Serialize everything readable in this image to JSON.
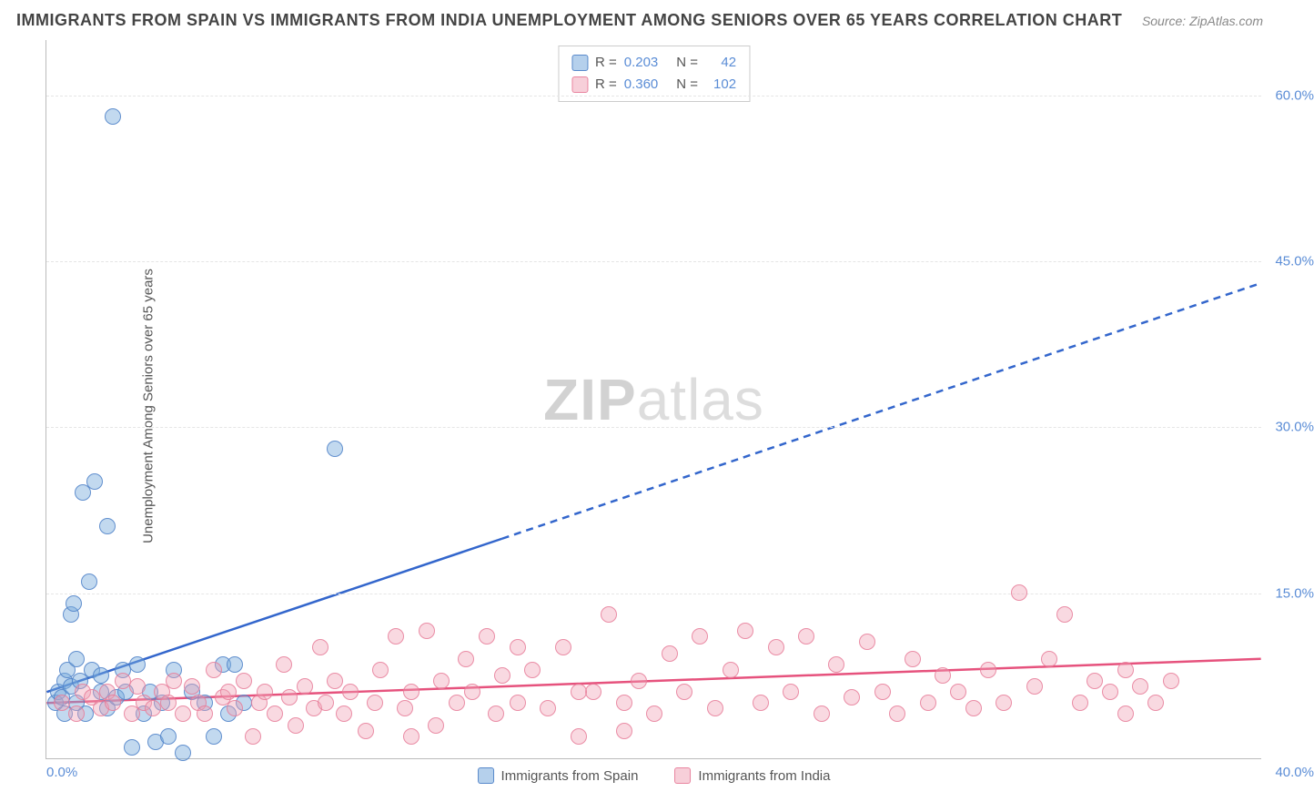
{
  "title": "IMMIGRANTS FROM SPAIN VS IMMIGRANTS FROM INDIA UNEMPLOYMENT AMONG SENIORS OVER 65 YEARS CORRELATION CHART",
  "source_label": "Source: ",
  "source_value": "ZipAtlas.com",
  "ylabel": "Unemployment Among Seniors over 65 years",
  "watermark_a": "ZIP",
  "watermark_b": "atlas",
  "chart": {
    "type": "scatter",
    "xlim": [
      0,
      40
    ],
    "ylim": [
      0,
      65
    ],
    "xticks": [
      {
        "v": 0,
        "label": "0.0%"
      },
      {
        "v": 40,
        "label": "40.0%"
      }
    ],
    "yticks": [
      {
        "v": 15,
        "label": "15.0%"
      },
      {
        "v": 30,
        "label": "30.0%"
      },
      {
        "v": 45,
        "label": "45.0%"
      },
      {
        "v": 60,
        "label": "60.0%"
      }
    ],
    "marker_radius": 9,
    "background_color": "#ffffff",
    "grid_color": "#e5e5e5",
    "series": [
      {
        "name": "Immigrants from Spain",
        "color_fill": "rgba(120,170,220,0.45)",
        "color_stroke": "#5b8dd6",
        "class": "blue",
        "R": "0.203",
        "N": "42",
        "trend": {
          "x1": 0,
          "y1": 6,
          "x2": 40,
          "y2": 43,
          "solid_until_x": 15,
          "stroke": "#3366cc",
          "width": 2.5
        },
        "points": [
          [
            0.3,
            5
          ],
          [
            0.4,
            6
          ],
          [
            0.5,
            5.5
          ],
          [
            0.6,
            7
          ],
          [
            0.6,
            4
          ],
          [
            0.7,
            8
          ],
          [
            0.8,
            6.5
          ],
          [
            0.8,
            13
          ],
          [
            0.9,
            14
          ],
          [
            1.0,
            5
          ],
          [
            1.0,
            9
          ],
          [
            1.1,
            7
          ],
          [
            1.2,
            24
          ],
          [
            1.3,
            4
          ],
          [
            1.4,
            16
          ],
          [
            1.5,
            8
          ],
          [
            1.6,
            25
          ],
          [
            1.8,
            6
          ],
          [
            1.8,
            7.5
          ],
          [
            2.0,
            4.5
          ],
          [
            2.0,
            21
          ],
          [
            2.2,
            58
          ],
          [
            2.3,
            5.5
          ],
          [
            2.5,
            8
          ],
          [
            2.6,
            6
          ],
          [
            2.8,
            1
          ],
          [
            3.0,
            8.5
          ],
          [
            3.2,
            4
          ],
          [
            3.4,
            6
          ],
          [
            3.6,
            1.5
          ],
          [
            3.8,
            5
          ],
          [
            4.0,
            2
          ],
          [
            4.2,
            8
          ],
          [
            4.5,
            0.5
          ],
          [
            5.2,
            5
          ],
          [
            5.5,
            2
          ],
          [
            5.8,
            8.5
          ],
          [
            6.0,
            4
          ],
          [
            6.2,
            8.5
          ],
          [
            6.5,
            5
          ],
          [
            9.5,
            28
          ],
          [
            4.8,
            6
          ]
        ]
      },
      {
        "name": "Immigrants from India",
        "color_fill": "rgba(240,160,180,0.40)",
        "color_stroke": "#e67896",
        "class": "pink",
        "R": "0.360",
        "N": "102",
        "trend": {
          "x1": 0,
          "y1": 5,
          "x2": 40,
          "y2": 9,
          "solid_until_x": 40,
          "stroke": "#e6527d",
          "width": 2.5
        },
        "points": [
          [
            0.5,
            5
          ],
          [
            1.0,
            4
          ],
          [
            1.2,
            6
          ],
          [
            1.5,
            5.5
          ],
          [
            1.8,
            4.5
          ],
          [
            2.0,
            6
          ],
          [
            2.2,
            5
          ],
          [
            2.5,
            7
          ],
          [
            2.8,
            4
          ],
          [
            3.0,
            6.5
          ],
          [
            3.2,
            5
          ],
          [
            3.5,
            4.5
          ],
          [
            3.8,
            6
          ],
          [
            4.0,
            5
          ],
          [
            4.2,
            7
          ],
          [
            4.5,
            4
          ],
          [
            4.8,
            6.5
          ],
          [
            5.0,
            5
          ],
          [
            5.2,
            4
          ],
          [
            5.5,
            8
          ],
          [
            5.8,
            5.5
          ],
          [
            6.0,
            6
          ],
          [
            6.2,
            4.5
          ],
          [
            6.5,
            7
          ],
          [
            6.8,
            2
          ],
          [
            7.0,
            5
          ],
          [
            7.2,
            6
          ],
          [
            7.5,
            4
          ],
          [
            7.8,
            8.5
          ],
          [
            8.0,
            5.5
          ],
          [
            8.2,
            3
          ],
          [
            8.5,
            6.5
          ],
          [
            8.8,
            4.5
          ],
          [
            9.0,
            10
          ],
          [
            9.2,
            5
          ],
          [
            9.5,
            7
          ],
          [
            9.8,
            4
          ],
          [
            10.0,
            6
          ],
          [
            10.5,
            2.5
          ],
          [
            10.8,
            5
          ],
          [
            11.0,
            8
          ],
          [
            11.5,
            11
          ],
          [
            11.8,
            4.5
          ],
          [
            12.0,
            6
          ],
          [
            12.5,
            11.5
          ],
          [
            12.8,
            3
          ],
          [
            13.0,
            7
          ],
          [
            13.5,
            5
          ],
          [
            13.8,
            9
          ],
          [
            14.0,
            6
          ],
          [
            14.5,
            11
          ],
          [
            14.8,
            4
          ],
          [
            15.0,
            7.5
          ],
          [
            15.5,
            5
          ],
          [
            16.0,
            8
          ],
          [
            16.5,
            4.5
          ],
          [
            17.0,
            10
          ],
          [
            17.5,
            2
          ],
          [
            18.0,
            6
          ],
          [
            18.5,
            13
          ],
          [
            19.0,
            5
          ],
          [
            19.5,
            7
          ],
          [
            20.0,
            4
          ],
          [
            20.5,
            9.5
          ],
          [
            21.0,
            6
          ],
          [
            21.5,
            11
          ],
          [
            22.0,
            4.5
          ],
          [
            22.5,
            8
          ],
          [
            23.0,
            11.5
          ],
          [
            23.5,
            5
          ],
          [
            24.0,
            10
          ],
          [
            24.5,
            6
          ],
          [
            25.0,
            11
          ],
          [
            25.5,
            4
          ],
          [
            26.0,
            8.5
          ],
          [
            26.5,
            5.5
          ],
          [
            27.0,
            10.5
          ],
          [
            27.5,
            6
          ],
          [
            28.0,
            4
          ],
          [
            28.5,
            9
          ],
          [
            29.0,
            5
          ],
          [
            29.5,
            7.5
          ],
          [
            30.0,
            6
          ],
          [
            30.5,
            4.5
          ],
          [
            31.0,
            8
          ],
          [
            31.5,
            5
          ],
          [
            32.0,
            15
          ],
          [
            32.5,
            6.5
          ],
          [
            33.0,
            9
          ],
          [
            33.5,
            13
          ],
          [
            34.0,
            5
          ],
          [
            34.5,
            7
          ],
          [
            35.0,
            6
          ],
          [
            35.5,
            4
          ],
          [
            35.5,
            8
          ],
          [
            36.0,
            6.5
          ],
          [
            36.5,
            5
          ],
          [
            37.0,
            7
          ],
          [
            19.0,
            2.5
          ],
          [
            12.0,
            2
          ],
          [
            15.5,
            10
          ],
          [
            17.5,
            6
          ]
        ]
      }
    ],
    "legend_top": {
      "rows": [
        {
          "swatch": "blue",
          "r_lbl": "R =",
          "r_val": "0.203",
          "n_lbl": "N =",
          "n_val": "42"
        },
        {
          "swatch": "pink",
          "r_lbl": "R =",
          "r_val": "0.360",
          "n_lbl": "N =",
          "n_val": "102"
        }
      ]
    },
    "legend_bottom": [
      {
        "swatch": "blue",
        "label": "Immigrants from Spain"
      },
      {
        "swatch": "pink",
        "label": "Immigrants from India"
      }
    ]
  }
}
